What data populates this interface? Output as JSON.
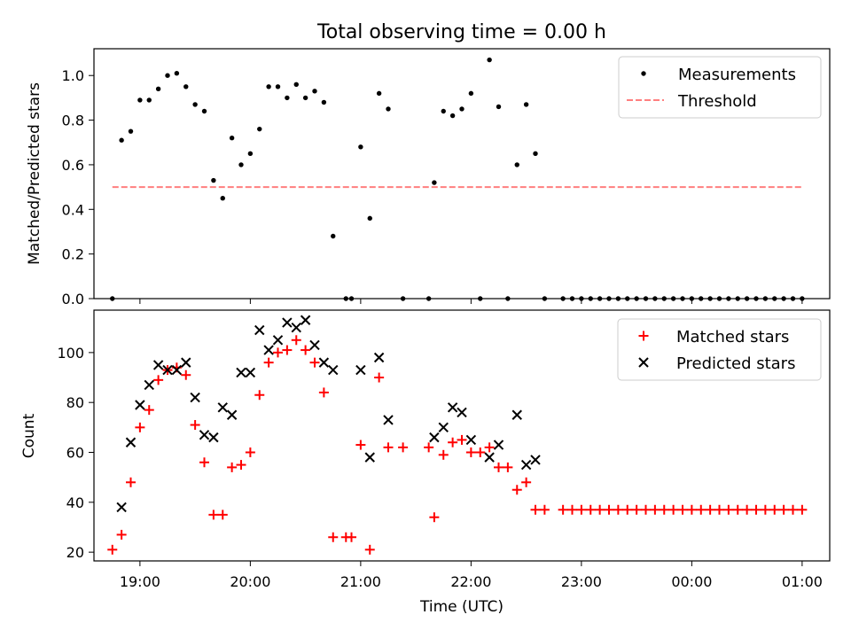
{
  "chart_data": [
    {
      "type": "scatter",
      "title": "Total observing time = 0.00 h",
      "ylabel": "Matched/Predicted stars",
      "xlabel": "",
      "xlim": [
        "18:35",
        "01:15"
      ],
      "ylim": [
        0,
        1.12
      ],
      "yticks": [
        0.0,
        0.2,
        0.4,
        0.6,
        0.8,
        1.0
      ],
      "ytick_labels": [
        "0.0",
        "0.2",
        "0.4",
        "0.6",
        "0.8",
        "1.0"
      ],
      "legend_position": "top-right",
      "legend": [
        {
          "label": "Measurements",
          "marker": "dot",
          "color": "#000000"
        },
        {
          "label": "Threshold",
          "marker": "dashed-line",
          "color": "#ff7f7f"
        }
      ],
      "threshold": {
        "value": 0.5,
        "x_start": "18:45",
        "x_end": "01:00",
        "color": "#ff7f7f"
      },
      "series": [
        {
          "name": "Measurements",
          "color": "#000000",
          "points": [
            [
              "18:45",
              0.0
            ],
            [
              "18:50",
              0.71
            ],
            [
              "18:55",
              0.75
            ],
            [
              "19:00",
              0.89
            ],
            [
              "19:05",
              0.89
            ],
            [
              "19:10",
              0.94
            ],
            [
              "19:15",
              1.0
            ],
            [
              "19:20",
              1.01
            ],
            [
              "19:25",
              0.95
            ],
            [
              "19:30",
              0.87
            ],
            [
              "19:35",
              0.84
            ],
            [
              "19:40",
              0.53
            ],
            [
              "19:45",
              0.45
            ],
            [
              "19:50",
              0.72
            ],
            [
              "19:55",
              0.6
            ],
            [
              "20:00",
              0.65
            ],
            [
              "20:05",
              0.76
            ],
            [
              "20:10",
              0.95
            ],
            [
              "20:15",
              0.95
            ],
            [
              "20:20",
              0.9
            ],
            [
              "20:25",
              0.96
            ],
            [
              "20:30",
              0.9
            ],
            [
              "20:35",
              0.93
            ],
            [
              "20:40",
              0.88
            ],
            [
              "20:45",
              0.28
            ],
            [
              "20:52",
              0.0
            ],
            [
              "20:55",
              0.0
            ],
            [
              "21:00",
              0.68
            ],
            [
              "21:05",
              0.36
            ],
            [
              "21:10",
              0.92
            ],
            [
              "21:15",
              0.85
            ],
            [
              "21:23",
              0.0
            ],
            [
              "21:37",
              0.0
            ],
            [
              "21:40",
              0.52
            ],
            [
              "21:45",
              0.84
            ],
            [
              "21:50",
              0.82
            ],
            [
              "21:55",
              0.85
            ],
            [
              "22:00",
              0.92
            ],
            [
              "22:05",
              0.0
            ],
            [
              "22:10",
              1.07
            ],
            [
              "22:15",
              0.86
            ],
            [
              "22:20",
              0.0
            ],
            [
              "22:25",
              0.6
            ],
            [
              "22:30",
              0.87
            ],
            [
              "22:35",
              0.65
            ],
            [
              "22:40",
              0.0
            ],
            [
              "22:50",
              0.0
            ],
            [
              "22:55",
              0.0
            ],
            [
              "23:00",
              0.0
            ],
            [
              "23:05",
              0.0
            ],
            [
              "23:10",
              0.0
            ],
            [
              "23:15",
              0.0
            ],
            [
              "23:20",
              0.0
            ],
            [
              "23:25",
              0.0
            ],
            [
              "23:30",
              0.0
            ],
            [
              "23:35",
              0.0
            ],
            [
              "23:40",
              0.0
            ],
            [
              "23:45",
              0.0
            ],
            [
              "23:50",
              0.0
            ],
            [
              "23:55",
              0.0
            ],
            [
              "00:00",
              0.0
            ],
            [
              "00:05",
              0.0
            ],
            [
              "00:10",
              0.0
            ],
            [
              "00:15",
              0.0
            ],
            [
              "00:20",
              0.0
            ],
            [
              "00:25",
              0.0
            ],
            [
              "00:30",
              0.0
            ],
            [
              "00:35",
              0.0
            ],
            [
              "00:40",
              0.0
            ],
            [
              "00:45",
              0.0
            ],
            [
              "00:50",
              0.0
            ],
            [
              "00:55",
              0.0
            ],
            [
              "01:00",
              0.0
            ]
          ]
        }
      ]
    },
    {
      "type": "scatter",
      "title": "",
      "ylabel": "Count",
      "xlabel": "Time (UTC)",
      "xlim": [
        "18:35",
        "01:15"
      ],
      "ylim": [
        16.5,
        117
      ],
      "yticks": [
        20,
        40,
        60,
        80,
        100
      ],
      "ytick_labels": [
        "20",
        "40",
        "60",
        "80",
        "100"
      ],
      "xticks": [
        "19:00",
        "20:00",
        "21:00",
        "22:00",
        "23:00",
        "00:00",
        "01:00"
      ],
      "xtick_labels": [
        "19:00",
        "20:00",
        "21:00",
        "22:00",
        "23:00",
        "00:00",
        "01:00"
      ],
      "legend_position": "top-right",
      "legend": [
        {
          "label": "Matched stars",
          "marker": "plus",
          "color": "#ff0000"
        },
        {
          "label": "Predicted stars",
          "marker": "x",
          "color": "#000000"
        }
      ],
      "series": [
        {
          "name": "Matched stars",
          "marker": "plus",
          "color": "#ff0000",
          "points": [
            [
              "18:45",
              21
            ],
            [
              "18:50",
              27
            ],
            [
              "18:55",
              48
            ],
            [
              "19:00",
              70
            ],
            [
              "19:05",
              77
            ],
            [
              "19:10",
              89
            ],
            [
              "19:15",
              93
            ],
            [
              "19:20",
              94
            ],
            [
              "19:25",
              91
            ],
            [
              "19:30",
              71
            ],
            [
              "19:35",
              56
            ],
            [
              "19:40",
              35
            ],
            [
              "19:45",
              35
            ],
            [
              "19:50",
              54
            ],
            [
              "19:55",
              55
            ],
            [
              "20:00",
              60
            ],
            [
              "20:05",
              83
            ],
            [
              "20:10",
              96
            ],
            [
              "20:15",
              100
            ],
            [
              "20:20",
              101
            ],
            [
              "20:25",
              105
            ],
            [
              "20:30",
              101
            ],
            [
              "20:35",
              96
            ],
            [
              "20:40",
              84
            ],
            [
              "20:45",
              26
            ],
            [
              "20:52",
              26
            ],
            [
              "20:55",
              26
            ],
            [
              "21:00",
              63
            ],
            [
              "21:05",
              21
            ],
            [
              "21:10",
              90
            ],
            [
              "21:15",
              62
            ],
            [
              "21:23",
              62
            ],
            [
              "21:37",
              62
            ],
            [
              "21:40",
              34
            ],
            [
              "21:45",
              59
            ],
            [
              "21:50",
              64
            ],
            [
              "21:55",
              65
            ],
            [
              "22:00",
              60
            ],
            [
              "22:05",
              60
            ],
            [
              "22:10",
              62
            ],
            [
              "22:15",
              54
            ],
            [
              "22:20",
              54
            ],
            [
              "22:25",
              45
            ],
            [
              "22:30",
              48
            ],
            [
              "22:35",
              37
            ],
            [
              "22:40",
              37
            ],
            [
              "22:50",
              37
            ],
            [
              "22:55",
              37
            ],
            [
              "23:00",
              37
            ],
            [
              "23:05",
              37
            ],
            [
              "23:10",
              37
            ],
            [
              "23:15",
              37
            ],
            [
              "23:20",
              37
            ],
            [
              "23:25",
              37
            ],
            [
              "23:30",
              37
            ],
            [
              "23:35",
              37
            ],
            [
              "23:40",
              37
            ],
            [
              "23:45",
              37
            ],
            [
              "23:50",
              37
            ],
            [
              "23:55",
              37
            ],
            [
              "00:00",
              37
            ],
            [
              "00:05",
              37
            ],
            [
              "00:10",
              37
            ],
            [
              "00:15",
              37
            ],
            [
              "00:20",
              37
            ],
            [
              "00:25",
              37
            ],
            [
              "00:30",
              37
            ],
            [
              "00:35",
              37
            ],
            [
              "00:40",
              37
            ],
            [
              "00:45",
              37
            ],
            [
              "00:50",
              37
            ],
            [
              "00:55",
              37
            ],
            [
              "01:00",
              37
            ]
          ]
        },
        {
          "name": "Predicted stars",
          "marker": "x",
          "color": "#000000",
          "points": [
            [
              "18:50",
              38
            ],
            [
              "18:55",
              64
            ],
            [
              "19:00",
              79
            ],
            [
              "19:05",
              87
            ],
            [
              "19:10",
              95
            ],
            [
              "19:15",
              93
            ],
            [
              "19:20",
              93
            ],
            [
              "19:25",
              96
            ],
            [
              "19:30",
              82
            ],
            [
              "19:35",
              67
            ],
            [
              "19:40",
              66
            ],
            [
              "19:45",
              78
            ],
            [
              "19:50",
              75
            ],
            [
              "19:55",
              92
            ],
            [
              "20:00",
              92
            ],
            [
              "20:05",
              109
            ],
            [
              "20:10",
              101
            ],
            [
              "20:15",
              105
            ],
            [
              "20:20",
              112
            ],
            [
              "20:25",
              110
            ],
            [
              "20:30",
              113
            ],
            [
              "20:35",
              103
            ],
            [
              "20:40",
              96
            ],
            [
              "20:45",
              93
            ],
            [
              "21:00",
              93
            ],
            [
              "21:05",
              58
            ],
            [
              "21:10",
              98
            ],
            [
              "21:15",
              73
            ],
            [
              "21:40",
              66
            ],
            [
              "21:45",
              70
            ],
            [
              "21:50",
              78
            ],
            [
              "21:55",
              76
            ],
            [
              "22:00",
              65
            ],
            [
              "22:10",
              58
            ],
            [
              "22:15",
              63
            ],
            [
              "22:25",
              75
            ],
            [
              "22:30",
              55
            ],
            [
              "22:35",
              57
            ]
          ]
        }
      ]
    }
  ]
}
